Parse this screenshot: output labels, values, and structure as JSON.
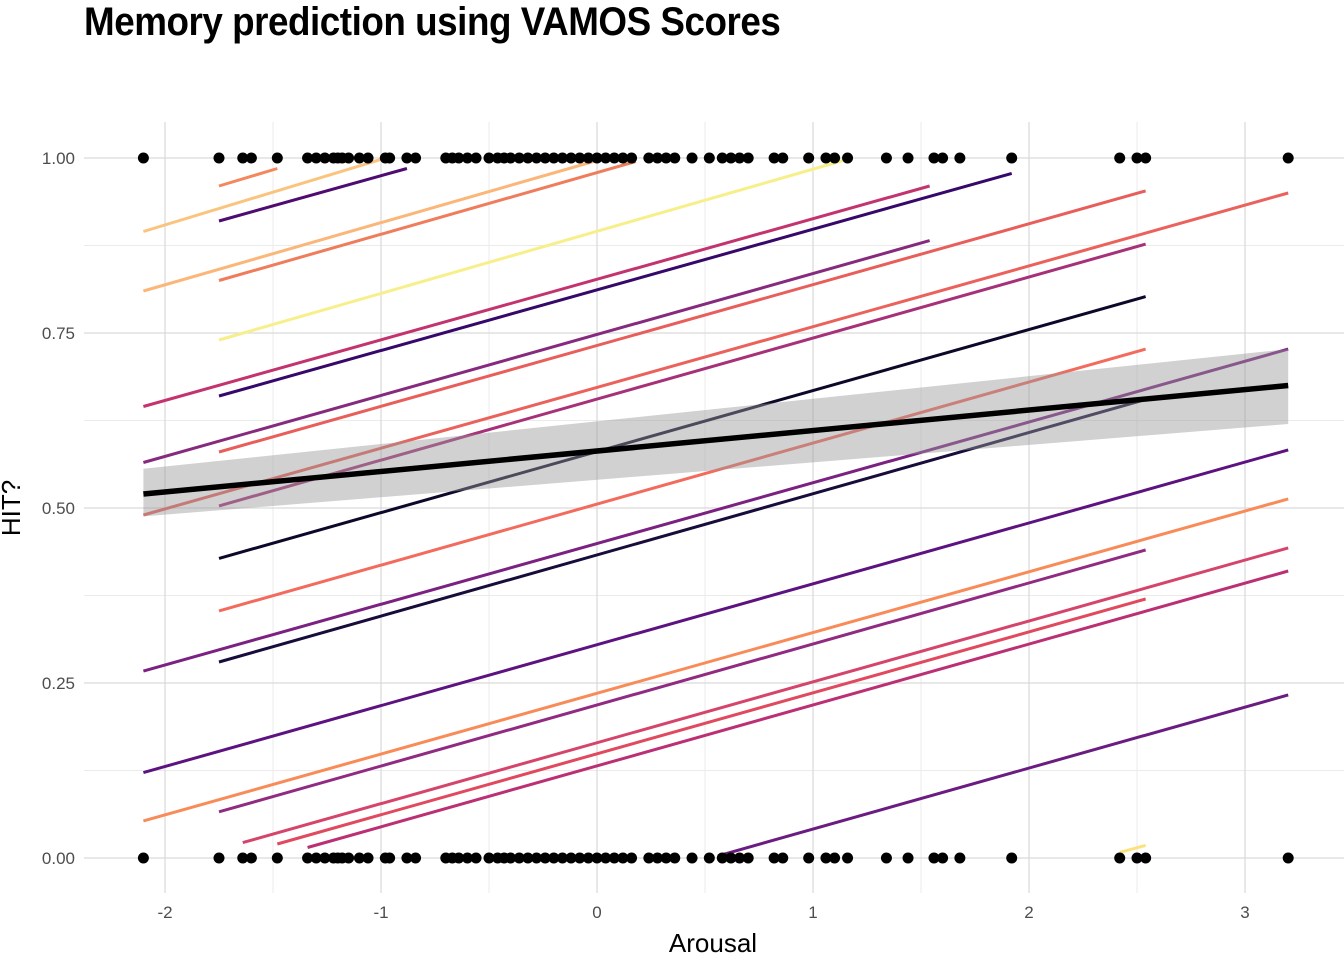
{
  "chart_data": {
    "type": "line",
    "title": "Memory prediction using VAMOS Scores",
    "xlabel": "Arousal",
    "ylabel": "HIT?",
    "xlim": [
      -2.35,
      3.35
    ],
    "ylim": [
      -0.025,
      1.05
    ],
    "x_ticks": [
      "-2",
      "-1",
      "0",
      "1",
      "2",
      "3"
    ],
    "x_tick_values": [
      -2,
      -1,
      0,
      1,
      2,
      3
    ],
    "y_ticks": [
      "0.00",
      "0.25",
      "0.50",
      "0.75",
      "1.00"
    ],
    "y_tick_values": [
      0,
      0.25,
      0.5,
      0.75,
      1.0
    ],
    "grid": true,
    "points_x": [
      -2.1,
      -1.75,
      -1.64,
      -1.6,
      -1.48,
      -1.34,
      -1.3,
      -1.26,
      -1.22,
      -1.2,
      -1.18,
      -1.15,
      -1.1,
      -1.06,
      -0.98,
      -0.96,
      -0.88,
      -0.84,
      -0.7,
      -0.67,
      -0.64,
      -0.6,
      -0.56,
      -0.5,
      -0.46,
      -0.43,
      -0.4,
      -0.36,
      -0.32,
      -0.28,
      -0.24,
      -0.2,
      -0.16,
      -0.12,
      -0.08,
      -0.04,
      0.0,
      0.04,
      0.08,
      0.12,
      0.16,
      0.24,
      0.28,
      0.32,
      0.36,
      0.44,
      0.52,
      0.58,
      0.62,
      0.66,
      0.7,
      0.82,
      0.86,
      0.98,
      1.06,
      1.1,
      1.16,
      1.34,
      1.44,
      1.56,
      1.6,
      1.68,
      1.92,
      2.42,
      2.5,
      2.54,
      3.2
    ],
    "points_y_values": [
      0,
      1
    ],
    "smooth_fit": {
      "x": [
        -2.1,
        3.2
      ],
      "y": [
        0.52,
        0.675
      ],
      "ci_lower": [
        0.488,
        0.62
      ],
      "ci_upper": [
        0.556,
        0.727
      ],
      "color": "#000000"
    },
    "series": [
      {
        "x": [
          -1.75,
          -1.48
        ],
        "y": [
          0.96,
          0.985
        ],
        "color": "#f4875c"
      },
      {
        "x": [
          -2.1,
          -0.98
        ],
        "y": [
          0.895,
          1.0
        ],
        "color": "#fbc47e"
      },
      {
        "x": [
          -1.75,
          -0.88
        ],
        "y": [
          0.91,
          0.985
        ],
        "color": "#4e0b70"
      },
      {
        "x": [
          -2.1,
          0.04
        ],
        "y": [
          0.81,
          1.0
        ],
        "color": "#fbb679"
      },
      {
        "x": [
          -1.75,
          0.18
        ],
        "y": [
          0.825,
          0.995
        ],
        "color": "#ef7d5b"
      },
      {
        "x": [
          -1.75,
          1.18
        ],
        "y": [
          0.74,
          1.0
        ],
        "color": "#f7ef8a"
      },
      {
        "x": [
          -2.1,
          1.54
        ],
        "y": [
          0.645,
          0.96
        ],
        "color": "#c3346f"
      },
      {
        "x": [
          -1.75,
          1.92
        ],
        "y": [
          0.66,
          0.978
        ],
        "color": "#36086a"
      },
      {
        "x": [
          -2.1,
          1.54
        ],
        "y": [
          0.565,
          0.882
        ],
        "color": "#862a7e"
      },
      {
        "x": [
          -1.75,
          2.54
        ],
        "y": [
          0.58,
          0.953
        ],
        "color": "#e85e5b"
      },
      {
        "x": [
          -2.1,
          3.2
        ],
        "y": [
          0.49,
          0.95
        ],
        "color": "#ea625b"
      },
      {
        "x": [
          -1.75,
          2.54
        ],
        "y": [
          0.503,
          0.877
        ],
        "color": "#a63178"
      },
      {
        "x": [
          -1.75,
          2.54
        ],
        "y": [
          0.428,
          0.802
        ],
        "color": "#0d0829"
      },
      {
        "x": [
          -1.75,
          2.54
        ],
        "y": [
          0.353,
          0.727
        ],
        "color": "#f26b5d"
      },
      {
        "x": [
          -2.1,
          3.2
        ],
        "y": [
          0.267,
          0.727
        ],
        "color": "#7a2181"
      },
      {
        "x": [
          -1.75,
          2.54
        ],
        "y": [
          0.28,
          0.655
        ],
        "color": "#170c3a"
      },
      {
        "x": [
          -2.1,
          3.2
        ],
        "y": [
          0.122,
          0.583
        ],
        "color": "#5c1380"
      },
      {
        "x": [
          -2.1,
          3.2
        ],
        "y": [
          0.053,
          0.513
        ],
        "color": "#f88b58"
      },
      {
        "x": [
          -1.75,
          2.54
        ],
        "y": [
          0.066,
          0.44
        ],
        "color": "#912b81"
      },
      {
        "x": [
          -1.64,
          3.2
        ],
        "y": [
          0.022,
          0.443
        ],
        "color": "#d5446b"
      },
      {
        "x": [
          -1.48,
          2.54
        ],
        "y": [
          0.02,
          0.37
        ],
        "color": "#e0495e"
      },
      {
        "x": [
          -1.34,
          3.2
        ],
        "y": [
          0.015,
          0.41
        ],
        "color": "#bb3074"
      },
      {
        "x": [
          0.56,
          3.2
        ],
        "y": [
          0.003,
          0.233
        ],
        "color": "#6a1c81"
      },
      {
        "x": [
          2.42,
          2.54
        ],
        "y": [
          0.008,
          0.018
        ],
        "color": "#fbe27c"
      }
    ]
  }
}
